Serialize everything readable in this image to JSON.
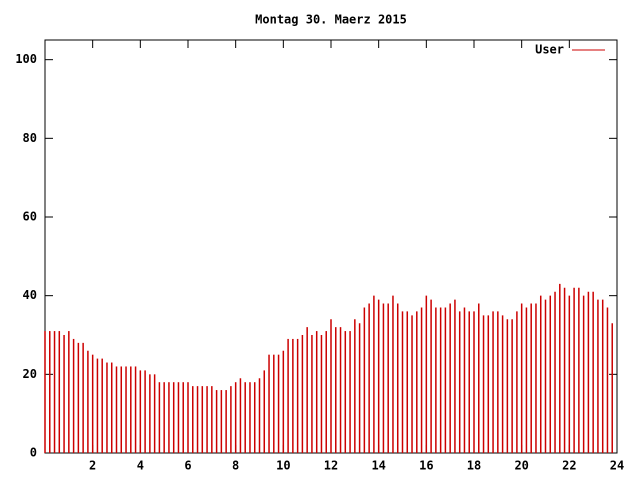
{
  "chart_data": {
    "type": "impulses",
    "title": "Montag 30. Maerz 2015",
    "xlim": [
      0,
      24
    ],
    "xticks": [
      2,
      4,
      6,
      8,
      10,
      12,
      14,
      16,
      18,
      20,
      22,
      24
    ],
    "ylim": [
      0,
      105
    ],
    "yticks": [
      0,
      20,
      40,
      60,
      80,
      100
    ],
    "legend": "top right",
    "x": [
      0,
      0.2,
      0.4,
      0.6,
      0.8,
      1,
      1.2,
      1.4,
      1.6,
      1.8,
      2,
      2.2,
      2.4,
      2.6,
      2.8,
      3,
      3.2,
      3.4,
      3.6,
      3.8,
      4,
      4.2,
      4.4,
      4.6,
      4.8,
      5,
      5.2,
      5.4,
      5.6,
      5.8,
      6,
      6.2,
      6.4,
      6.6,
      6.8,
      7,
      7.2,
      7.4,
      7.6,
      7.8,
      8,
      8.2,
      8.4,
      8.6,
      8.8,
      9,
      9.2,
      9.4,
      9.6,
      9.8,
      10,
      10.2,
      10.4,
      10.6,
      10.8,
      11,
      11.2,
      11.4,
      11.6,
      11.8,
      12,
      12.2,
      12.4,
      12.6,
      12.8,
      13,
      13.2,
      13.4,
      13.6,
      13.8,
      14,
      14.2,
      14.4,
      14.6,
      14.8,
      15,
      15.2,
      15.4,
      15.6,
      15.8,
      16,
      16.2,
      16.4,
      16.6,
      16.8,
      17,
      17.2,
      17.4,
      17.6,
      17.8,
      18,
      18.2,
      18.4,
      18.6,
      18.8,
      19,
      19.2,
      19.4,
      19.6,
      19.8,
      20,
      20.2,
      20.4,
      20.6,
      20.8,
      21,
      21.2,
      21.4,
      21.6,
      21.8,
      22,
      22.2,
      22.4,
      22.6,
      22.8,
      23,
      23.2,
      23.4,
      23.6,
      23.8
    ],
    "series": [
      {
        "name": "User",
        "color": "#cc0000",
        "values": [
          31,
          31,
          31,
          31,
          30,
          31,
          29,
          28,
          28,
          26,
          25,
          24,
          24,
          23,
          23,
          22,
          22,
          22,
          22,
          22,
          21,
          21,
          20,
          20,
          18,
          18,
          18,
          18,
          18,
          18,
          18,
          17,
          17,
          17,
          17,
          17,
          16,
          16,
          16,
          17,
          18,
          19,
          18,
          18,
          18,
          19,
          21,
          25,
          25,
          25,
          26,
          29,
          29,
          29,
          30,
          32,
          30,
          31,
          30,
          31,
          34,
          32,
          32,
          31,
          31,
          34,
          33,
          37,
          38,
          40,
          39,
          38,
          38,
          40,
          38,
          36,
          36,
          35,
          36,
          37,
          40,
          39,
          37,
          37,
          37,
          38,
          39,
          36,
          37,
          36,
          36,
          38,
          35,
          35,
          36,
          36,
          35,
          34,
          34,
          36,
          38,
          37,
          38,
          38,
          40,
          39,
          40,
          41,
          43,
          42,
          40,
          42,
          42,
          40,
          41,
          41,
          39,
          39,
          37,
          33
        ]
      }
    ]
  }
}
